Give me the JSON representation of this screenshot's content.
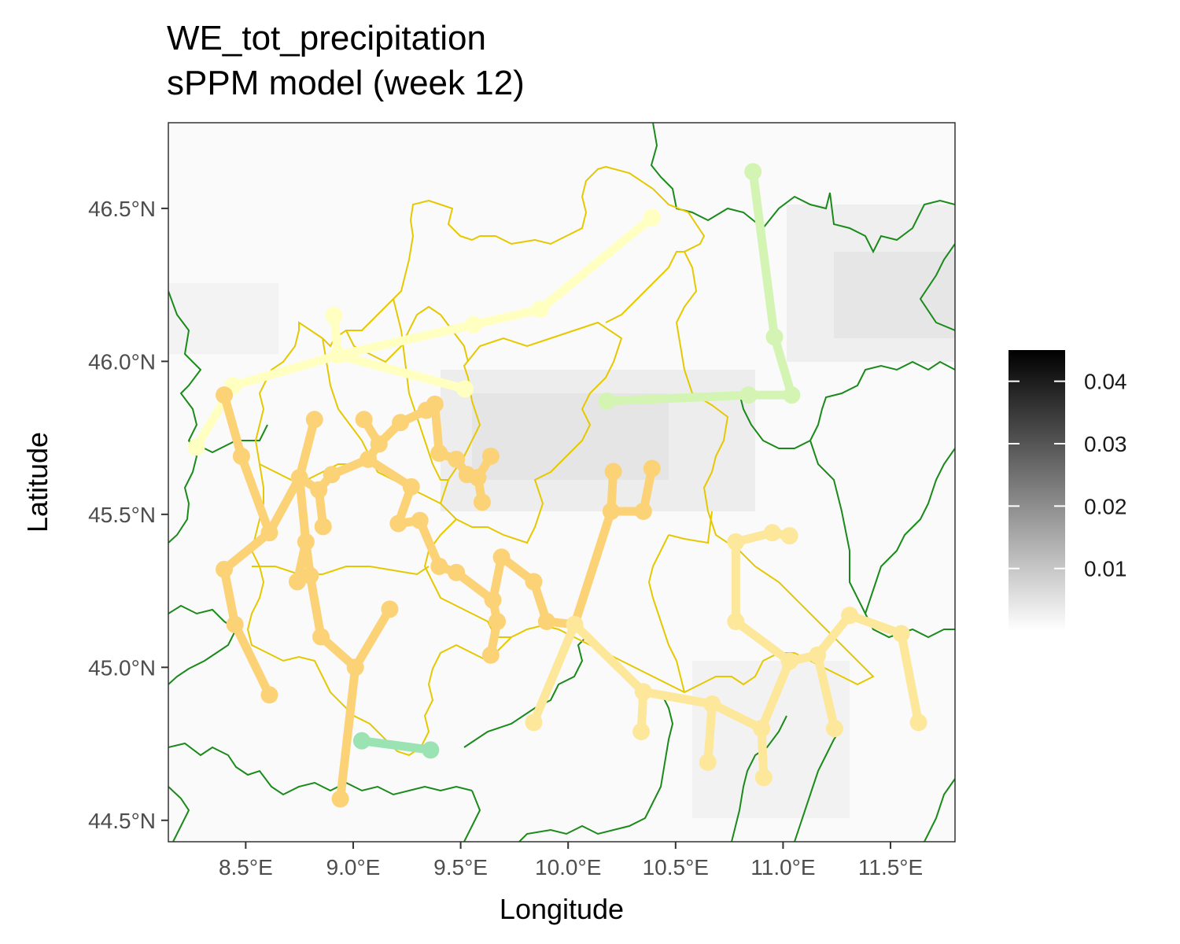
{
  "title": {
    "line1": "WE_tot_precipitation",
    "line2": "sPPM model (week 12)"
  },
  "chart_data": {
    "type": "map",
    "xlabel": "Longitude",
    "ylabel": "Latitude",
    "xlim": [
      8.14,
      11.8
    ],
    "ylim": [
      44.43,
      46.78
    ],
    "x_ticks": [
      {
        "value": 8.5,
        "label": "8.5°E"
      },
      {
        "value": 9.0,
        "label": "9.0°E"
      },
      {
        "value": 9.5,
        "label": "9.5°E"
      },
      {
        "value": 10.0,
        "label": "10.0°E"
      },
      {
        "value": 10.5,
        "label": "10.5°E"
      },
      {
        "value": 11.0,
        "label": "11.0°E"
      },
      {
        "value": 11.5,
        "label": "11.5°E"
      }
    ],
    "y_ticks": [
      {
        "value": 44.5,
        "label": "44.5°N"
      },
      {
        "value": 45.0,
        "label": "45.0°N"
      },
      {
        "value": 45.5,
        "label": "45.5°N"
      },
      {
        "value": 46.0,
        "label": "46.0°N"
      },
      {
        "value": 46.5,
        "label": "46.5°N"
      }
    ],
    "legend": {
      "placement": "right",
      "min": 0,
      "max": 0.045,
      "breaks": [
        {
          "value": 0.01,
          "label": "0.01"
        },
        {
          "value": 0.02,
          "label": "0.02"
        },
        {
          "value": 0.03,
          "label": "0.03"
        },
        {
          "value": 0.04,
          "label": "0.04"
        }
      ],
      "colors": [
        "#ffffff",
        "#000000"
      ]
    },
    "colors": {
      "background_low": "#fafafa",
      "background_mid": "#e6e6e6",
      "region_border": "#e6c800",
      "neighbor_border": "#1a8a1a",
      "cluster_orange": "#fcd277",
      "cluster_light_orange": "#fde79a",
      "cluster_yellow": "#ffffc2",
      "cluster_lightgreen": "#d4f4b4",
      "cluster_green": "#9be3b2"
    },
    "clusters": [
      {
        "color": "#ffffc2",
        "points": [
          [
            8.27,
            45.72
          ],
          [
            8.44,
            45.92
          ],
          [
            8.93,
            46.02
          ],
          [
            9.52,
            45.91
          ],
          [
            8.91,
            46.15
          ],
          [
            9.56,
            46.12
          ],
          [
            9.87,
            46.17
          ],
          [
            10.39,
            46.47
          ]
        ],
        "edges": [
          [
            0,
            1
          ],
          [
            1,
            2
          ],
          [
            2,
            3
          ],
          [
            2,
            4
          ],
          [
            2,
            5
          ],
          [
            5,
            6
          ],
          [
            6,
            7
          ]
        ]
      },
      {
        "color": "#d4f4b4",
        "points": [
          [
            10.86,
            46.62
          ],
          [
            10.96,
            46.08
          ],
          [
            11.04,
            45.89
          ],
          [
            10.84,
            45.89
          ],
          [
            10.18,
            45.87
          ]
        ],
        "edges": [
          [
            0,
            1
          ],
          [
            1,
            2
          ],
          [
            2,
            3
          ],
          [
            3,
            4
          ]
        ]
      },
      {
        "color": "#9be3b2",
        "points": [
          [
            9.04,
            44.76
          ],
          [
            9.36,
            44.73
          ]
        ],
        "edges": [
          [
            0,
            1
          ]
        ]
      },
      {
        "color": "#fcd277",
        "points": [
          [
            8.4,
            45.89
          ],
          [
            8.48,
            45.69
          ],
          [
            8.61,
            45.44
          ],
          [
            8.4,
            45.32
          ],
          [
            8.45,
            45.14
          ],
          [
            8.61,
            44.91
          ],
          [
            8.82,
            45.81
          ],
          [
            8.75,
            45.62
          ],
          [
            8.78,
            45.41
          ],
          [
            8.74,
            45.28
          ],
          [
            8.84,
            45.58
          ],
          [
            8.86,
            45.46
          ],
          [
            8.8,
            45.3
          ],
          [
            8.85,
            45.1
          ],
          [
            9.01,
            45.0
          ],
          [
            8.94,
            44.57
          ],
          [
            9.17,
            45.19
          ],
          [
            8.9,
            45.63
          ],
          [
            9.07,
            45.68
          ],
          [
            9.12,
            45.73
          ],
          [
            9.05,
            45.81
          ],
          [
            9.22,
            45.8
          ],
          [
            9.34,
            45.84
          ],
          [
            9.38,
            45.86
          ],
          [
            9.4,
            45.7
          ],
          [
            9.27,
            45.59
          ],
          [
            9.21,
            45.47
          ],
          [
            9.31,
            45.48
          ],
          [
            9.4,
            45.33
          ],
          [
            9.48,
            45.31
          ],
          [
            9.65,
            45.22
          ],
          [
            9.67,
            45.15
          ],
          [
            9.64,
            45.04
          ],
          [
            9.69,
            45.36
          ],
          [
            9.84,
            45.28
          ],
          [
            9.9,
            45.15
          ],
          [
            10.03,
            45.14
          ],
          [
            10.2,
            45.51
          ],
          [
            10.21,
            45.64
          ],
          [
            10.35,
            45.51
          ],
          [
            10.39,
            45.65
          ],
          [
            9.48,
            45.68
          ],
          [
            9.53,
            45.63
          ],
          [
            9.58,
            45.62
          ],
          [
            9.6,
            45.54
          ],
          [
            9.64,
            45.69
          ]
        ],
        "edges": [
          [
            0,
            1
          ],
          [
            1,
            2
          ],
          [
            2,
            3
          ],
          [
            3,
            4
          ],
          [
            4,
            5
          ],
          [
            2,
            7
          ],
          [
            6,
            7
          ],
          [
            7,
            8
          ],
          [
            8,
            9
          ],
          [
            8,
            12
          ],
          [
            12,
            13
          ],
          [
            13,
            14
          ],
          [
            14,
            15
          ],
          [
            14,
            16
          ],
          [
            7,
            10
          ],
          [
            10,
            11
          ],
          [
            10,
            17
          ],
          [
            17,
            18
          ],
          [
            18,
            19
          ],
          [
            19,
            20
          ],
          [
            19,
            21
          ],
          [
            21,
            22
          ],
          [
            22,
            23
          ],
          [
            23,
            24
          ],
          [
            18,
            25
          ],
          [
            25,
            26
          ],
          [
            26,
            27
          ],
          [
            27,
            28
          ],
          [
            28,
            29
          ],
          [
            29,
            30
          ],
          [
            30,
            31
          ],
          [
            31,
            32
          ],
          [
            30,
            33
          ],
          [
            33,
            34
          ],
          [
            34,
            35
          ],
          [
            35,
            36
          ],
          [
            36,
            37
          ],
          [
            37,
            38
          ],
          [
            37,
            39
          ],
          [
            39,
            40
          ],
          [
            24,
            41
          ],
          [
            41,
            42
          ],
          [
            42,
            43
          ],
          [
            43,
            44
          ],
          [
            43,
            45
          ]
        ]
      },
      {
        "color": "#fde79a",
        "points": [
          [
            9.84,
            44.82
          ],
          [
            10.03,
            45.14
          ],
          [
            10.35,
            44.92
          ],
          [
            10.34,
            44.79
          ],
          [
            10.67,
            44.88
          ],
          [
            10.65,
            44.69
          ],
          [
            10.9,
            44.8
          ],
          [
            10.91,
            44.64
          ],
          [
            11.03,
            45.02
          ],
          [
            11.16,
            45.04
          ],
          [
            11.31,
            45.17
          ],
          [
            11.55,
            45.11
          ],
          [
            11.63,
            44.82
          ],
          [
            11.24,
            44.8
          ],
          [
            10.78,
            45.41
          ],
          [
            10.95,
            45.44
          ],
          [
            11.03,
            45.43
          ],
          [
            10.78,
            45.15
          ]
        ],
        "edges": [
          [
            0,
            1
          ],
          [
            1,
            2
          ],
          [
            2,
            3
          ],
          [
            2,
            4
          ],
          [
            4,
            5
          ],
          [
            4,
            6
          ],
          [
            6,
            7
          ],
          [
            6,
            8
          ],
          [
            8,
            9
          ],
          [
            9,
            10
          ],
          [
            10,
            11
          ],
          [
            11,
            12
          ],
          [
            9,
            13
          ],
          [
            8,
            17
          ],
          [
            17,
            14
          ],
          [
            14,
            15
          ],
          [
            15,
            16
          ]
        ]
      }
    ]
  }
}
